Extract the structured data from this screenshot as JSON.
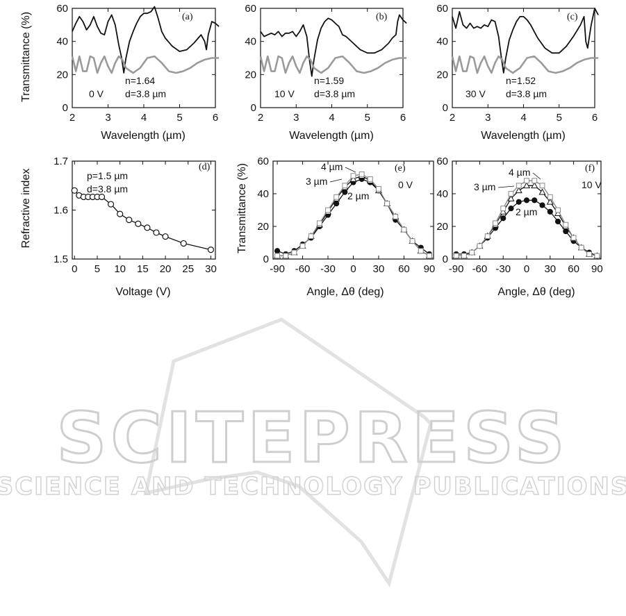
{
  "watermark": {
    "line1": "SCITEPRESS",
    "line2": "SCIENCE AND TECHNOLOGY PUBLICATIONS"
  },
  "chart_data": [
    {
      "id": "a",
      "type": "line",
      "panel_label": "(a)",
      "xlabel": "Wavelength (µm)",
      "ylabel": "Transmittance (%)",
      "xlim": [
        2,
        6
      ],
      "ylim": [
        0,
        60
      ],
      "xticks": [
        2,
        3,
        4,
        5,
        6
      ],
      "yticks": [
        0,
        20,
        40,
        60
      ],
      "annotations": {
        "voltage": "0 V",
        "n": "n=1.64",
        "d": "d=3.8 µm"
      },
      "series": [
        {
          "style": "measured",
          "color": "#111111",
          "x": [
            2.0,
            2.1,
            2.2,
            2.3,
            2.4,
            2.5,
            2.6,
            2.7,
            2.8,
            2.9,
            3.0,
            3.1,
            3.2,
            3.3,
            3.38,
            3.44,
            3.5,
            3.6,
            3.7,
            3.8,
            3.9,
            4.0,
            4.1,
            4.2,
            4.3,
            4.4,
            4.5,
            4.6,
            4.8,
            5.0,
            5.2,
            5.4,
            5.6,
            5.7,
            5.75,
            5.8,
            5.9,
            6.0,
            6.1
          ],
          "y": [
            46,
            51,
            55,
            52,
            47,
            50,
            55,
            49,
            45,
            44,
            52,
            56,
            50,
            38,
            30,
            21,
            30,
            40,
            46,
            51,
            55,
            57,
            57,
            58,
            61,
            54,
            46,
            42,
            37,
            34,
            35,
            39,
            44,
            40,
            35,
            44,
            52,
            51,
            49
          ]
        },
        {
          "style": "calculated",
          "color": "#9a9a9a",
          "x": [
            2.0,
            2.1,
            2.2,
            2.3,
            2.4,
            2.5,
            2.6,
            2.7,
            2.8,
            2.9,
            3.0,
            3.1,
            3.2,
            3.3,
            3.4,
            3.5,
            3.7,
            3.9,
            4.1,
            4.3,
            4.5,
            4.7,
            4.9,
            5.1,
            5.3,
            5.5,
            5.7,
            5.9,
            6.1
          ],
          "y": [
            31,
            22,
            31,
            22,
            22,
            31,
            30,
            21,
            27,
            31,
            25,
            21,
            27,
            31,
            29,
            24,
            21,
            24,
            30,
            31,
            27,
            22,
            21,
            22,
            24,
            27,
            29,
            30,
            30
          ]
        }
      ]
    },
    {
      "id": "b",
      "type": "line",
      "panel_label": "(b)",
      "xlabel": "Wavelength (µm)",
      "ylabel": "",
      "xlim": [
        2,
        6
      ],
      "ylim": [
        0,
        60
      ],
      "xticks": [
        2,
        3,
        4,
        5,
        6
      ],
      "yticks": [
        0,
        20,
        40,
        60
      ],
      "annotations": {
        "voltage": "10 V",
        "n": "n=1.59",
        "d": "d=3.8 µm"
      },
      "series": [
        {
          "style": "measured",
          "color": "#111111",
          "x": [
            2.0,
            2.1,
            2.2,
            2.3,
            2.4,
            2.5,
            2.6,
            2.7,
            2.8,
            2.9,
            3.0,
            3.1,
            3.2,
            3.3,
            3.38,
            3.44,
            3.5,
            3.6,
            3.7,
            3.8,
            3.9,
            4.0,
            4.1,
            4.2,
            4.3,
            4.4,
            4.6,
            4.8,
            5.0,
            5.2,
            5.4,
            5.6,
            5.7,
            5.8,
            5.85,
            5.9,
            6.0,
            6.1
          ],
          "y": [
            46,
            43,
            44,
            45,
            44,
            46,
            43,
            45,
            45,
            46,
            43,
            46,
            50,
            43,
            28,
            19,
            29,
            41,
            48,
            52,
            54,
            53,
            51,
            49,
            44,
            43,
            39,
            35,
            33,
            33,
            35,
            39,
            42,
            44,
            52,
            56,
            53,
            51
          ]
        },
        {
          "style": "calculated",
          "color": "#9a9a9a",
          "x": [
            2.0,
            2.1,
            2.2,
            2.3,
            2.4,
            2.5,
            2.6,
            2.7,
            2.8,
            2.9,
            3.0,
            3.1,
            3.2,
            3.3,
            3.4,
            3.5,
            3.7,
            3.9,
            4.1,
            4.3,
            4.5,
            4.7,
            4.9,
            5.1,
            5.3,
            5.5,
            5.7,
            5.9,
            6.1
          ],
          "y": [
            31,
            22,
            31,
            22,
            22,
            31,
            30,
            21,
            27,
            31,
            25,
            21,
            27,
            31,
            29,
            24,
            21,
            24,
            30,
            31,
            27,
            22,
            21,
            22,
            24,
            27,
            29,
            30,
            30
          ]
        }
      ]
    },
    {
      "id": "c",
      "type": "line",
      "panel_label": "(c)",
      "xlabel": "Wavelength (µm)",
      "ylabel": "",
      "xlim": [
        2,
        6
      ],
      "ylim": [
        0,
        60
      ],
      "xticks": [
        2,
        3,
        4,
        5,
        6
      ],
      "yticks": [
        0,
        20,
        40,
        60
      ],
      "annotations": {
        "voltage": "30 V",
        "n": "n=1.52",
        "d": "d=3.8 µm"
      },
      "series": [
        {
          "style": "measured",
          "color": "#111111",
          "x": [
            2.0,
            2.1,
            2.2,
            2.3,
            2.4,
            2.5,
            2.6,
            2.7,
            2.8,
            2.9,
            3.0,
            3.1,
            3.2,
            3.3,
            3.38,
            3.44,
            3.5,
            3.6,
            3.7,
            3.8,
            3.9,
            4.0,
            4.1,
            4.2,
            4.3,
            4.4,
            4.6,
            4.8,
            5.0,
            5.2,
            5.4,
            5.6,
            5.7,
            5.75,
            5.8,
            5.9,
            6.0,
            6.1
          ],
          "y": [
            55,
            48,
            58,
            50,
            48,
            51,
            48,
            49,
            48,
            50,
            49,
            53,
            52,
            43,
            30,
            21,
            30,
            41,
            47,
            52,
            55,
            55,
            53,
            50,
            46,
            42,
            36,
            33,
            33,
            37,
            43,
            50,
            55,
            40,
            36,
            50,
            60,
            56
          ]
        },
        {
          "style": "calculated",
          "color": "#9a9a9a",
          "x": [
            2.0,
            2.1,
            2.2,
            2.3,
            2.4,
            2.5,
            2.6,
            2.7,
            2.8,
            2.9,
            3.0,
            3.1,
            3.2,
            3.3,
            3.4,
            3.5,
            3.7,
            3.9,
            4.1,
            4.3,
            4.5,
            4.7,
            4.9,
            5.1,
            5.3,
            5.5,
            5.7,
            5.9,
            6.1
          ],
          "y": [
            31,
            22,
            31,
            22,
            22,
            31,
            30,
            21,
            27,
            31,
            25,
            21,
            27,
            31,
            29,
            24,
            21,
            24,
            30,
            31,
            27,
            22,
            21,
            22,
            24,
            27,
            29,
            30,
            30
          ]
        }
      ]
    },
    {
      "id": "d",
      "type": "line",
      "panel_label": "(d)",
      "xlabel": "Voltage (V)",
      "ylabel": "Refractive index",
      "xlim": [
        -0.5,
        31
      ],
      "ylim": [
        1.5,
        1.7
      ],
      "xticks": [
        0,
        5,
        10,
        15,
        20,
        25,
        30
      ],
      "yticks": [
        1.5,
        1.6,
        1.7
      ],
      "annotations": {
        "p": "p=1.5 µm",
        "d": "d=3.8 µm"
      },
      "series": [
        {
          "marker": "open-circle",
          "color": "#111111",
          "x": [
            0,
            1,
            2,
            3,
            4,
            5,
            6,
            8,
            10,
            12,
            14,
            16,
            18,
            20,
            24,
            30
          ],
          "y": [
            1.64,
            1.63,
            1.627,
            1.627,
            1.627,
            1.627,
            1.627,
            1.612,
            1.592,
            1.58,
            1.572,
            1.564,
            1.554,
            1.546,
            1.532,
            1.519
          ]
        }
      ]
    },
    {
      "id": "e",
      "type": "line",
      "panel_label": "(e)",
      "xlabel": "Angle, Δθ (deg)",
      "ylabel": "Transmittance (%)",
      "xlim": [
        -95,
        95
      ],
      "ylim": [
        0,
        60
      ],
      "xticks": [
        -90,
        -60,
        -30,
        0,
        30,
        60,
        90
      ],
      "yticks": [
        0,
        20,
        40,
        60
      ],
      "annotations": {
        "voltage": "0 V",
        "label_4": "4 µm",
        "label_3": "3 µm",
        "label_2": "2 µm"
      },
      "series": [
        {
          "name": "2 µm",
          "marker": "filled-circle",
          "color": "#111111",
          "x": [
            -90,
            -80,
            -70,
            -60,
            -50,
            -40,
            -30,
            -20,
            -10,
            0,
            10,
            20,
            30,
            40,
            50,
            60,
            70,
            80,
            90
          ],
          "y": [
            5,
            3,
            5,
            9,
            13,
            20,
            27,
            34,
            41,
            47,
            49,
            47,
            42,
            34,
            24,
            18,
            11,
            7,
            3
          ]
        },
        {
          "name": "3 µm",
          "marker": "open-triangle",
          "color": "#111111",
          "x": [
            -90,
            -80,
            -70,
            -60,
            -50,
            -40,
            -30,
            -20,
            -10,
            0,
            10,
            20,
            30,
            40,
            50,
            60,
            70,
            80,
            90
          ],
          "y": [
            2,
            2,
            4,
            8,
            14,
            21,
            29,
            37,
            44,
            49,
            51,
            48,
            42,
            34,
            26,
            18,
            11,
            5,
            2
          ]
        },
        {
          "name": "4 µm",
          "marker": "open-square",
          "color": "#888888",
          "x": [
            -90,
            -80,
            -70,
            -60,
            -50,
            -40,
            -30,
            -20,
            -10,
            0,
            10,
            20,
            30,
            40,
            50,
            60,
            70,
            80,
            90
          ],
          "y": [
            2,
            2,
            4,
            8,
            14,
            22,
            30,
            38,
            45,
            51,
            52,
            49,
            43,
            34,
            26,
            18,
            11,
            5,
            2
          ]
        }
      ]
    },
    {
      "id": "f",
      "type": "line",
      "panel_label": "(f)",
      "xlabel": "Angle, Δθ (deg)",
      "ylabel": "",
      "xlim": [
        -95,
        95
      ],
      "ylim": [
        0,
        60
      ],
      "xticks": [
        -90,
        -60,
        -30,
        0,
        30,
        60,
        90
      ],
      "yticks": [
        0,
        20,
        40,
        60
      ],
      "annotations": {
        "voltage": "10 V",
        "label_4": "4 µm",
        "label_3": "3 µm",
        "label_2": "2 µm"
      },
      "series": [
        {
          "name": "2 µm",
          "marker": "filled-circle",
          "color": "#111111",
          "x": [
            -90,
            -80,
            -70,
            -60,
            -50,
            -40,
            -30,
            -20,
            -10,
            0,
            10,
            20,
            30,
            40,
            50,
            60,
            70,
            80,
            90
          ],
          "y": [
            3,
            3,
            4,
            8,
            13,
            19,
            25,
            31,
            35,
            36,
            36,
            33,
            29,
            23,
            17,
            11,
            7,
            4,
            2
          ]
        },
        {
          "name": "3 µm",
          "marker": "open-triangle",
          "color": "#111111",
          "x": [
            -90,
            -80,
            -70,
            -60,
            -50,
            -40,
            -30,
            -20,
            -10,
            0,
            10,
            20,
            30,
            40,
            50,
            60,
            70,
            80,
            90
          ],
          "y": [
            2,
            2,
            4,
            8,
            14,
            21,
            29,
            37,
            42,
            45,
            45,
            41,
            35,
            28,
            20,
            13,
            7,
            3,
            2
          ]
        },
        {
          "name": "4 µm",
          "marker": "open-square",
          "color": "#888888",
          "x": [
            -90,
            -80,
            -70,
            -60,
            -50,
            -40,
            -30,
            -20,
            -10,
            0,
            10,
            20,
            30,
            40,
            50,
            60,
            70,
            80,
            90
          ],
          "y": [
            2,
            2,
            4,
            8,
            14,
            22,
            31,
            40,
            45,
            48,
            48,
            45,
            38,
            30,
            21,
            13,
            7,
            3,
            2
          ]
        }
      ]
    }
  ]
}
